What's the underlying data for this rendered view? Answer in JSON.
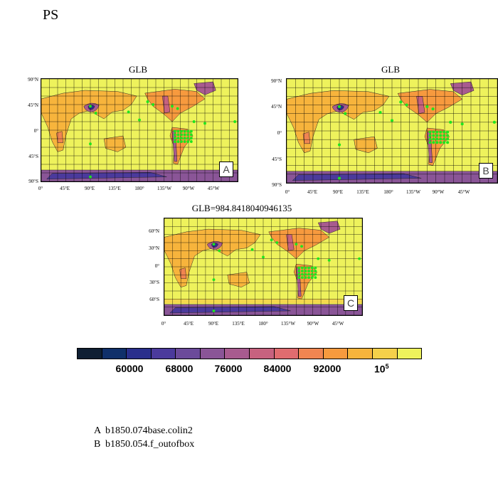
{
  "page_title": "PS",
  "panels": [
    {
      "title": "GLB",
      "tag": "A"
    },
    {
      "title": "GLB",
      "tag": "B"
    },
    {
      "title": "GLB=984.8418040946135",
      "tag": "C"
    }
  ],
  "lat_ticks_ab": [
    "90°N",
    "45°N",
    "0°",
    "45°S",
    "90°S"
  ],
  "lat_ticks_c": [
    "60°N",
    "30°N",
    "0°",
    "30°S",
    "60°S"
  ],
  "lon_ticks": [
    "0°",
    "45°E",
    "90°E",
    "135°E",
    "180°",
    "135°W",
    "90°W",
    "45°W"
  ],
  "colorbar": {
    "colors": [
      "#0f1f33",
      "#10306a",
      "#2a2f8c",
      "#4b3a9c",
      "#6b4a9a",
      "#8a5597",
      "#a85b8f",
      "#c7627f",
      "#e06c6f",
      "#f08551",
      "#f79a3e",
      "#f7b43c",
      "#f5d04a",
      "#eef25c"
    ],
    "labels": [
      "60000",
      "68000",
      "76000",
      "84000",
      "92000",
      "10"
    ],
    "last_label_exponent": "5"
  },
  "legend": [
    {
      "key": "A",
      "text": "b1850.074base.colin2"
    },
    {
      "key": "B",
      "text": "b1850.054.f_outofbox"
    }
  ]
}
